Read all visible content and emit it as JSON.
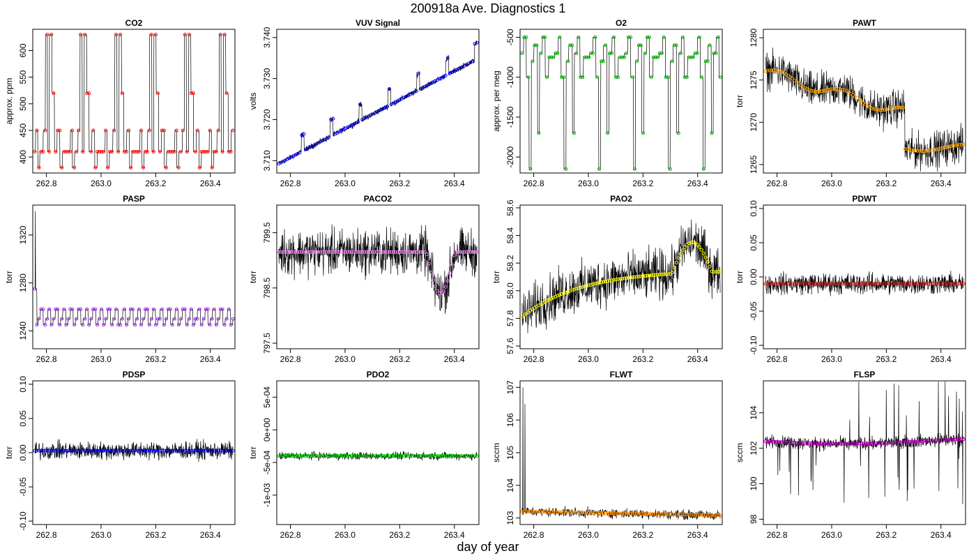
{
  "title": "200918a   Ave. Diagnostics 1",
  "xlabel": "day of year",
  "chart_data": [
    {
      "type": "line",
      "title": "CO2",
      "ylabel": "approx. ppm",
      "xlim": [
        262.75,
        263.49
      ],
      "ylim": [
        370,
        640
      ],
      "xticks": [
        "262.8",
        "263.0",
        "263.2",
        "263.4"
      ],
      "yticks": [
        "400",
        "450",
        "500",
        "550",
        "600"
      ],
      "yvals": [
        400,
        450,
        500,
        550,
        600
      ],
      "color": "#ff0000",
      "pattern": "co2",
      "base": 410,
      "amp": 0,
      "noise": 0
    },
    {
      "type": "line",
      "title": "VUV Signal",
      "ylabel": "volts",
      "xlim": [
        262.75,
        263.49
      ],
      "ylim": [
        3.707,
        3.742
      ],
      "xticks": [
        "262.8",
        "263.0",
        "263.2",
        "263.4"
      ],
      "yticks": [
        "3.710",
        "3.720",
        "3.730",
        "3.740"
      ],
      "yvals": [
        3.71,
        3.72,
        3.73,
        3.74
      ],
      "color": "#0000ff",
      "pattern": "vuv",
      "base": 3.709,
      "amp": 0,
      "noise": 0.0006
    },
    {
      "type": "line",
      "title": "O2",
      "ylabel": "approx. per meg",
      "xlim": [
        262.75,
        263.49
      ],
      "ylim": [
        -2200,
        -400
      ],
      "xticks": [
        "262.8",
        "263.0",
        "263.2",
        "263.4"
      ],
      "yticks": [
        "-2000",
        "-1500",
        "-1000",
        "-500"
      ],
      "yvals": [
        -2000,
        -1500,
        -1000,
        -500
      ],
      "color": "#00aa00",
      "pattern": "o2",
      "base": -700,
      "amp": 0,
      "noise": 0
    },
    {
      "type": "line",
      "title": "PAWT",
      "ylabel": "torr",
      "xlim": [
        262.75,
        263.49
      ],
      "ylim": [
        1264,
        1281
      ],
      "xticks": [
        "262.8",
        "263.0",
        "263.2",
        "263.4"
      ],
      "yticks": [
        "1265",
        "1270",
        "1275",
        "1280"
      ],
      "yvals": [
        1265,
        1270,
        1275,
        1280
      ],
      "color": "#ffa500",
      "pattern": "pawt",
      "base": 1272,
      "amp": 0,
      "noise": 1.8
    },
    {
      "type": "line",
      "title": "PASP",
      "ylabel": "torr",
      "xlim": [
        262.75,
        263.49
      ],
      "ylim": [
        1225,
        1345
      ],
      "xticks": [
        "262.8",
        "263.0",
        "263.2",
        "263.4"
      ],
      "yticks": [
        "1240",
        "1280",
        "1320"
      ],
      "yvals": [
        1240,
        1280,
        1320
      ],
      "color": "#a020f0",
      "pattern": "pasp",
      "base": 1252,
      "amp": 0,
      "noise": 0
    },
    {
      "type": "line",
      "title": "PACO2",
      "ylabel": "torr",
      "xlim": [
        262.75,
        263.49
      ],
      "ylim": [
        797.4,
        800.0
      ],
      "xticks": [
        "262.8",
        "263.0",
        "263.2",
        "263.4"
      ],
      "yticks": [
        "797.5",
        "798.5",
        "799.5"
      ],
      "yvals": [
        797.5,
        798.5,
        799.5
      ],
      "color": "#ee82ee",
      "pattern": "paco2",
      "base": 799.2,
      "amp": 0,
      "noise": 0.35
    },
    {
      "type": "line",
      "title": "PAO2",
      "ylabel": "torr",
      "xlim": [
        262.75,
        263.49
      ],
      "ylim": [
        57.58,
        58.62
      ],
      "xticks": [
        "262.8",
        "263.0",
        "263.2",
        "263.4"
      ],
      "yticks": [
        "57.6",
        "57.8",
        "58.0",
        "58.2",
        "58.4",
        "58.6"
      ],
      "yvals": [
        57.6,
        57.8,
        58.0,
        58.2,
        58.4,
        58.6
      ],
      "color": "#ffff00",
      "pattern": "pao2",
      "base": 58.1,
      "amp": 0,
      "noise": 0.15
    },
    {
      "type": "line",
      "title": "PDWT",
      "ylabel": "torr",
      "xlim": [
        262.75,
        263.49
      ],
      "ylim": [
        -0.105,
        0.105
      ],
      "xticks": [
        "262.8",
        "263.0",
        "263.2",
        "263.4"
      ],
      "yticks": [
        "-0.10",
        "-0.05",
        "0.00",
        "0.05",
        "0.10"
      ],
      "yvals": [
        -0.1,
        -0.05,
        0.0,
        0.05,
        0.1
      ],
      "color": "#b22222",
      "pattern": "flat",
      "base": -0.01,
      "amp": 0,
      "noise": 0.013
    },
    {
      "type": "line",
      "title": "PDSP",
      "ylabel": "torr",
      "xlim": [
        262.75,
        263.49
      ],
      "ylim": [
        -0.105,
        0.105
      ],
      "xticks": [
        "262.8",
        "263.0",
        "263.2",
        "263.4"
      ],
      "yticks": [
        "-0.10",
        "-0.05",
        "0.00",
        "0.05",
        "0.10"
      ],
      "yvals": [
        -0.1,
        -0.05,
        0.0,
        0.05,
        0.1
      ],
      "color": "#0000ff",
      "pattern": "flat",
      "base": 0.003,
      "amp": 0,
      "noise": 0.011
    },
    {
      "type": "line",
      "title": "PDO2",
      "ylabel": "torr",
      "xlim": [
        262.75,
        263.49
      ],
      "ylim": [
        -0.00145,
        0.00075
      ],
      "xticks": [
        "262.8",
        "263.0",
        "263.2",
        "263.4"
      ],
      "yticks": [
        "-1e-03",
        "-5e-04",
        "0e+00",
        "5e-04"
      ],
      "yvals": [
        -0.001,
        -0.0005,
        0,
        0.0005
      ],
      "color": "#00cc00",
      "pattern": "flat",
      "base": -0.0004,
      "amp": 0,
      "noise": 5e-05
    },
    {
      "type": "line",
      "title": "FLWT",
      "ylabel": "sccm",
      "xlim": [
        262.75,
        263.49
      ],
      "ylim": [
        102.8,
        107.2
      ],
      "xticks": [
        "262.8",
        "263.0",
        "263.2",
        "263.4"
      ],
      "yticks": [
        "103",
        "104",
        "105",
        "106",
        "107"
      ],
      "yvals": [
        103,
        104,
        105,
        106,
        107
      ],
      "color": "#ff8c00",
      "pattern": "flwt",
      "base": 103.15,
      "amp": 0,
      "noise": 0.12
    },
    {
      "type": "line",
      "title": "FLSP",
      "ylabel": "sccm",
      "xlim": [
        262.75,
        263.49
      ],
      "ylim": [
        97.7,
        105.8
      ],
      "xticks": [
        "262.8",
        "263.0",
        "263.2",
        "263.4"
      ],
      "yticks": [
        "98",
        "100",
        "102",
        "104"
      ],
      "yvals": [
        98,
        100,
        102,
        104
      ],
      "color": "#b000b0",
      "pattern": "flsp",
      "base": 102.35,
      "amp": 0,
      "noise": 0.3
    }
  ]
}
